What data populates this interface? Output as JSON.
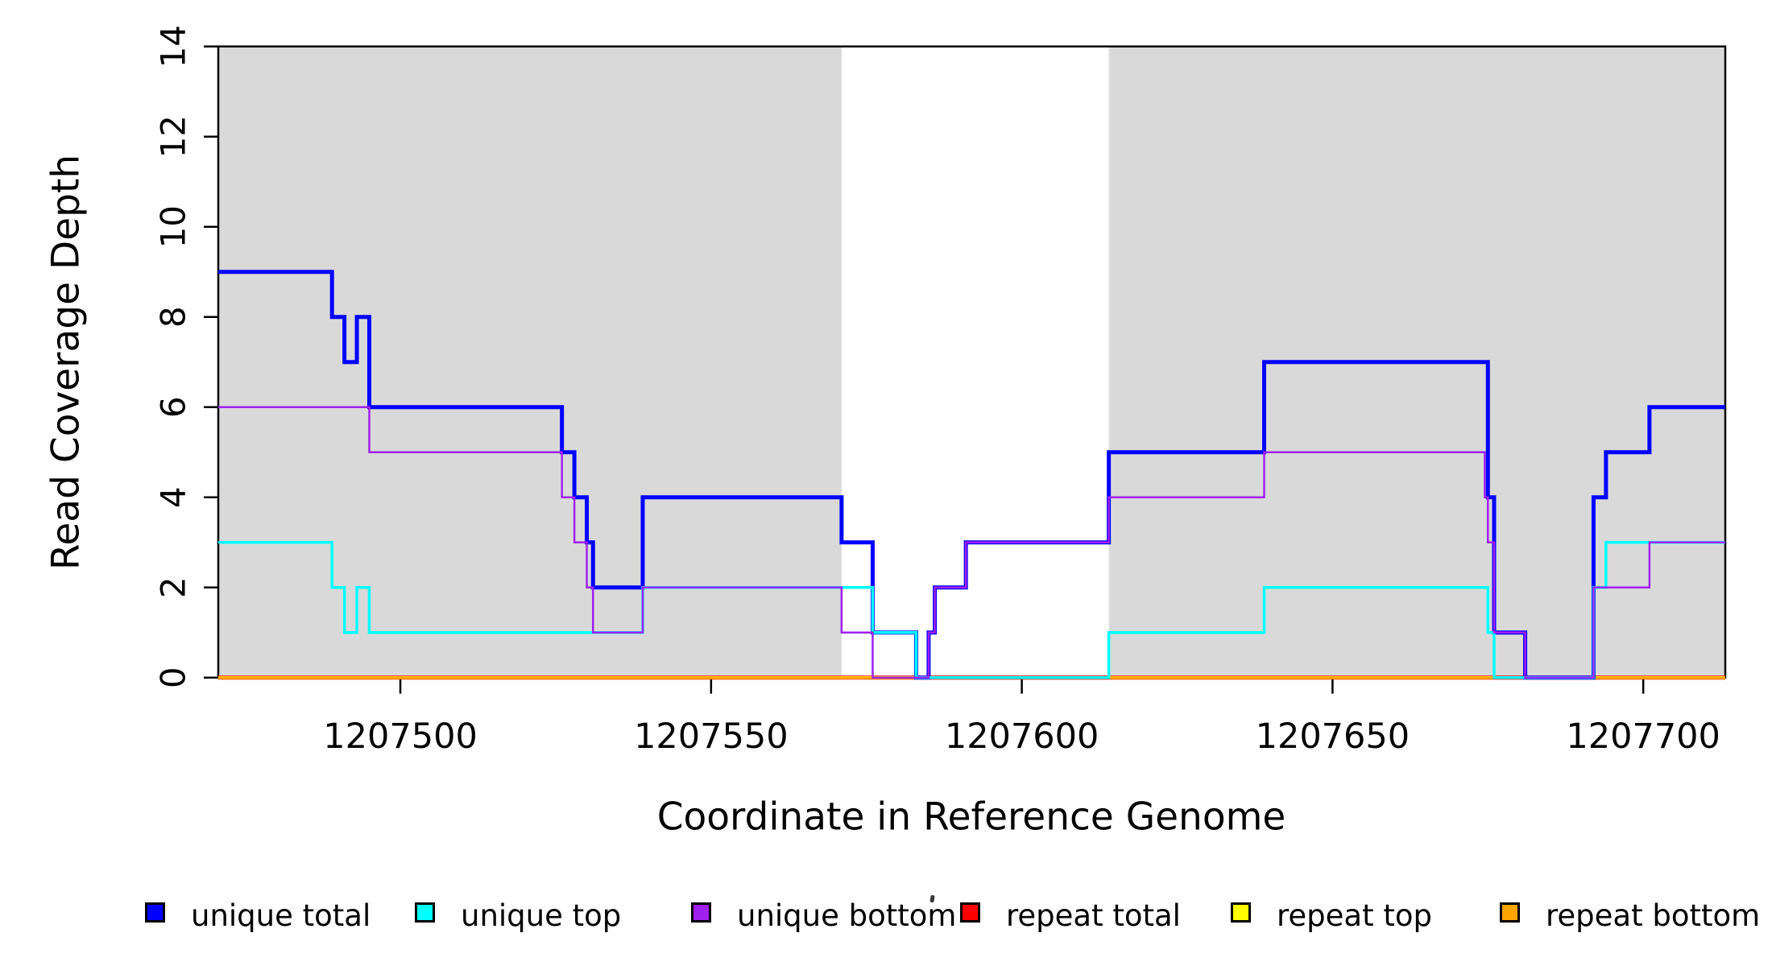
{
  "figure": {
    "ylabel": "Read Coverage Depth",
    "xlabel": "Coordinate in Reference Genome"
  },
  "axes": {
    "y_tick_labels": [
      "0",
      "2",
      "4",
      "6",
      "8",
      "10",
      "12",
      "14"
    ],
    "y_tick_values": [
      0,
      2,
      4,
      6,
      8,
      10,
      12,
      14
    ],
    "x_tick_labels": [
      "1207500",
      "1207550",
      "1207600",
      "1207650",
      "1207700"
    ],
    "x_tick_values": [
      1207500,
      1207550,
      1207600,
      1207650,
      1207700
    ]
  },
  "colors": {
    "shaded_region": "#d9d9d9",
    "axis": "#000000",
    "unique_total": "#0000ff",
    "unique_top": "#00ffff",
    "unique_bottom": "#a020f0",
    "repeat_total": "#ff0000",
    "repeat_top": "#ffff00",
    "repeat_bottom": "#ffa500"
  },
  "legend": {
    "items": [
      {
        "label": "unique total",
        "color": "#0000ff"
      },
      {
        "label": "unique top",
        "color": "#00ffff"
      },
      {
        "label": "unique bottom",
        "color": "#a020f0"
      },
      {
        "label": "repeat total",
        "color": "#ff0000"
      },
      {
        "label": "repeat top",
        "color": "#ffff00"
      },
      {
        "label": "repeat bottom",
        "color": "#ffa500"
      }
    ]
  },
  "chart_data": {
    "type": "line",
    "subtype": "step",
    "title": "",
    "xlabel": "Coordinate in Reference Genome",
    "ylabel": "Read Coverage Depth",
    "xlim": [
      1207470.7,
      1207713.2
    ],
    "ylim": [
      0,
      14
    ],
    "grid": false,
    "legend_position": "bottom",
    "shaded_regions": [
      {
        "x0": 1207470.7,
        "x1": 1207571
      },
      {
        "x0": 1207614,
        "x1": 1207713.2
      }
    ],
    "series": [
      {
        "name": "repeat total",
        "color": "#ff0000",
        "width": 5,
        "steps": [
          [
            1207470.7,
            0
          ]
        ]
      },
      {
        "name": "repeat top",
        "color": "#ffff00",
        "width": 3.5,
        "steps": [
          [
            1207470.7,
            0
          ]
        ]
      },
      {
        "name": "repeat bottom",
        "color": "#ffa500",
        "width": 2.5,
        "steps": [
          [
            1207470.7,
            0
          ]
        ]
      },
      {
        "name": "unique total",
        "color": "#0000ff",
        "width": 5,
        "steps": [
          [
            1207470.7,
            9
          ],
          [
            1207489,
            8
          ],
          [
            1207491,
            7
          ],
          [
            1207493,
            8
          ],
          [
            1207495,
            6
          ],
          [
            1207526,
            5
          ],
          [
            1207528,
            4
          ],
          [
            1207530,
            3
          ],
          [
            1207531,
            2
          ],
          [
            1207539,
            4
          ],
          [
            1207571,
            3
          ],
          [
            1207576,
            1
          ],
          [
            1207583,
            0
          ],
          [
            1207585,
            1
          ],
          [
            1207586,
            2
          ],
          [
            1207591,
            3
          ],
          [
            1207614,
            5
          ],
          [
            1207639,
            7
          ],
          [
            1207675,
            4
          ],
          [
            1207676,
            1
          ],
          [
            1207681,
            0
          ],
          [
            1207692,
            4
          ],
          [
            1207694,
            5
          ],
          [
            1207701,
            6
          ]
        ]
      },
      {
        "name": "unique top",
        "color": "#00ffff",
        "width": 3.5,
        "steps": [
          [
            1207470.7,
            3
          ],
          [
            1207489,
            2
          ],
          [
            1207491,
            1
          ],
          [
            1207493,
            2
          ],
          [
            1207495,
            1
          ],
          [
            1207539,
            2
          ],
          [
            1207576,
            1
          ],
          [
            1207583,
            0
          ],
          [
            1207614,
            1
          ],
          [
            1207639,
            2
          ],
          [
            1207675,
            1
          ],
          [
            1207676,
            0
          ],
          [
            1207692,
            2
          ],
          [
            1207694,
            3
          ]
        ]
      },
      {
        "name": "unique bottom",
        "color": "#a020f0",
        "width": 2.5,
        "steps": [
          [
            1207470.7,
            6
          ],
          [
            1207495,
            5
          ],
          [
            1207526,
            4
          ],
          [
            1207528,
            3
          ],
          [
            1207530,
            2
          ],
          [
            1207531,
            1
          ],
          [
            1207539,
            2
          ],
          [
            1207571,
            1
          ],
          [
            1207576,
            0
          ],
          [
            1207585,
            1
          ],
          [
            1207586,
            2
          ],
          [
            1207591,
            3
          ],
          [
            1207614,
            4
          ],
          [
            1207639,
            5
          ],
          [
            1207674.5,
            4
          ],
          [
            1207675,
            3
          ],
          [
            1207676,
            1
          ],
          [
            1207681,
            0
          ],
          [
            1207692,
            2
          ],
          [
            1207701,
            3
          ]
        ]
      }
    ]
  }
}
